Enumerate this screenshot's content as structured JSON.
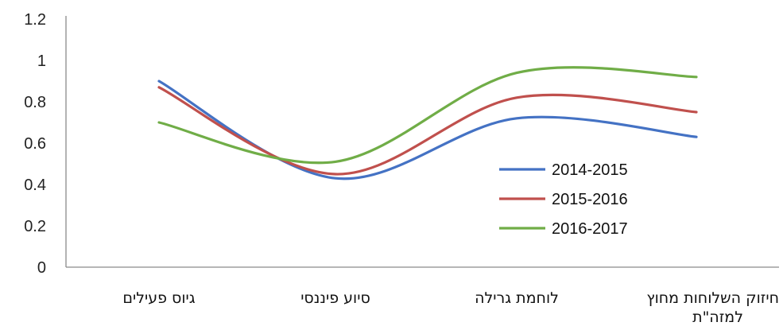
{
  "chart_data": {
    "type": "line",
    "smooth": true,
    "categories": [
      "גיוס פעילים",
      "סיוע פיננסי",
      "לוחמת גרילה",
      "חיזוק השלוחות מחוץ למזה\"ת"
    ],
    "category_lines": [
      [
        "גיוס פעילים"
      ],
      [
        "סיוע פיננסי"
      ],
      [
        "לוחמת גרילה"
      ],
      [
        "חיזוק השלוחות מחוץ",
        "למזה\"ת"
      ]
    ],
    "series": [
      {
        "name": "2014-2015",
        "color": "#4472C4",
        "values": [
          0.9,
          0.43,
          0.72,
          0.63
        ]
      },
      {
        "name": "2015-2016",
        "color": "#C0504D",
        "values": [
          0.87,
          0.45,
          0.82,
          0.75
        ]
      },
      {
        "name": "2016-2017",
        "color": "#70AD47",
        "values": [
          0.7,
          0.51,
          0.94,
          0.92
        ]
      }
    ],
    "ylim": [
      0,
      1.2
    ],
    "yticks": [
      "0",
      "0.2",
      "0.4",
      "0.6",
      "0.8",
      "1",
      "1.2"
    ],
    "ytick_values": [
      0,
      0.2,
      0.4,
      0.6,
      0.8,
      1.0,
      1.2
    ],
    "ylabel": "",
    "xlabel": "",
    "title": "",
    "grid": false,
    "legend": "inside-right"
  }
}
